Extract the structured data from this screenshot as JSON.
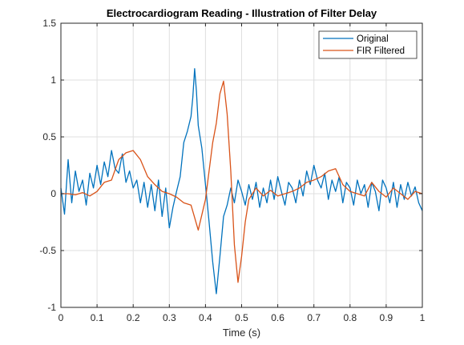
{
  "chart_data": {
    "type": "line",
    "title": "Electrocardiogram Reading - Illustration of Filter Delay",
    "xlabel": "Time (s)",
    "ylabel": "",
    "xlim": [
      0,
      1
    ],
    "ylim": [
      -1,
      1.5
    ],
    "xticks": [
      0,
      0.1,
      0.2,
      0.3,
      0.4,
      0.5,
      0.6,
      0.7,
      0.8,
      0.9,
      1
    ],
    "xtick_labels": [
      "0",
      "0.1",
      "0.2",
      "0.3",
      "0.4",
      "0.5",
      "0.6",
      "0.7",
      "0.8",
      "0.9",
      "1"
    ],
    "yticks": [
      -1,
      -0.5,
      0,
      0.5,
      1,
      1.5
    ],
    "ytick_labels": [
      "-1",
      "-0.5",
      "0",
      "0.5",
      "1",
      "1.5"
    ],
    "grid": true,
    "legend_position": "top-right",
    "colors": {
      "original": "#0072BD",
      "filtered": "#D95319",
      "grid": "#DFDFDF",
      "axes": "#262626"
    },
    "series": [
      {
        "name": "Original",
        "x": [
          0,
          0.01,
          0.02,
          0.03,
          0.04,
          0.05,
          0.06,
          0.07,
          0.08,
          0.09,
          0.1,
          0.11,
          0.12,
          0.13,
          0.14,
          0.15,
          0.16,
          0.17,
          0.18,
          0.19,
          0.2,
          0.21,
          0.22,
          0.23,
          0.24,
          0.25,
          0.26,
          0.27,
          0.28,
          0.29,
          0.3,
          0.31,
          0.32,
          0.33,
          0.34,
          0.35,
          0.36,
          0.365,
          0.37,
          0.375,
          0.38,
          0.39,
          0.4,
          0.41,
          0.42,
          0.43,
          0.44,
          0.45,
          0.46,
          0.47,
          0.48,
          0.49,
          0.5,
          0.51,
          0.52,
          0.53,
          0.54,
          0.55,
          0.56,
          0.57,
          0.58,
          0.59,
          0.6,
          0.61,
          0.62,
          0.63,
          0.64,
          0.65,
          0.66,
          0.67,
          0.68,
          0.69,
          0.7,
          0.71,
          0.72,
          0.73,
          0.74,
          0.75,
          0.76,
          0.77,
          0.78,
          0.79,
          0.8,
          0.81,
          0.82,
          0.83,
          0.84,
          0.85,
          0.86,
          0.87,
          0.88,
          0.89,
          0.9,
          0.91,
          0.92,
          0.93,
          0.94,
          0.95,
          0.96,
          0.97,
          0.98,
          0.99,
          1
        ],
        "y": [
          0.05,
          -0.18,
          0.3,
          -0.08,
          0.2,
          0.02,
          0.12,
          -0.1,
          0.18,
          0.05,
          0.25,
          0.08,
          0.28,
          0.15,
          0.38,
          0.22,
          0.18,
          0.35,
          0.1,
          0.2,
          0.05,
          0.12,
          -0.08,
          0.1,
          -0.12,
          0.08,
          -0.15,
          0.12,
          -0.2,
          0.05,
          -0.3,
          -0.12,
          0.02,
          0.15,
          0.45,
          0.55,
          0.68,
          0.85,
          1.1,
          0.9,
          0.6,
          0.4,
          0.08,
          -0.25,
          -0.6,
          -0.88,
          -0.55,
          -0.2,
          -0.1,
          0.05,
          -0.08,
          0.12,
          0.02,
          -0.1,
          0.08,
          -0.05,
          0.1,
          -0.12,
          0.05,
          -0.08,
          0.12,
          -0.05,
          0.15,
          0.02,
          -0.1,
          0.1,
          0.05,
          -0.08,
          0.12,
          -0.02,
          0.2,
          0.08,
          0.25,
          0.12,
          0.05,
          0.18,
          -0.05,
          0.12,
          0.02,
          0.15,
          -0.08,
          0.1,
          0.05,
          -0.1,
          0.12,
          0.0,
          0.08,
          -0.12,
          0.1,
          0.02,
          -0.15,
          0.12,
          0.05,
          -0.08,
          0.1,
          -0.12,
          0.08,
          -0.05,
          0.1,
          -0.02,
          0.06,
          -0.08,
          -0.15
        ]
      },
      {
        "name": "FIR Filtered",
        "x": [
          0,
          0.02,
          0.04,
          0.06,
          0.08,
          0.1,
          0.12,
          0.14,
          0.16,
          0.18,
          0.2,
          0.22,
          0.24,
          0.26,
          0.28,
          0.3,
          0.32,
          0.34,
          0.36,
          0.38,
          0.4,
          0.41,
          0.42,
          0.43,
          0.44,
          0.45,
          0.46,
          0.47,
          0.48,
          0.49,
          0.5,
          0.51,
          0.52,
          0.54,
          0.56,
          0.58,
          0.6,
          0.62,
          0.64,
          0.66,
          0.68,
          0.7,
          0.72,
          0.74,
          0.76,
          0.78,
          0.8,
          0.82,
          0.84,
          0.86,
          0.88,
          0.9,
          0.92,
          0.94,
          0.96,
          0.98,
          1
        ],
        "y": [
          0,
          0.0,
          -0.01,
          0.01,
          -0.02,
          0.02,
          0.1,
          0.12,
          0.3,
          0.36,
          0.38,
          0.3,
          0.15,
          0.08,
          0.02,
          0.0,
          -0.03,
          -0.08,
          -0.1,
          -0.32,
          -0.05,
          0.2,
          0.45,
          0.62,
          0.88,
          0.99,
          0.7,
          0.2,
          -0.45,
          -0.78,
          -0.55,
          -0.25,
          -0.05,
          0.05,
          -0.02,
          0.03,
          -0.02,
          0.0,
          0.02,
          0.05,
          0.1,
          0.12,
          0.15,
          0.2,
          0.22,
          0.08,
          0.02,
          0.0,
          -0.02,
          0.1,
          0.02,
          -0.03,
          0.05,
          0.0,
          -0.05,
          0.02,
          0.0
        ]
      }
    ]
  }
}
